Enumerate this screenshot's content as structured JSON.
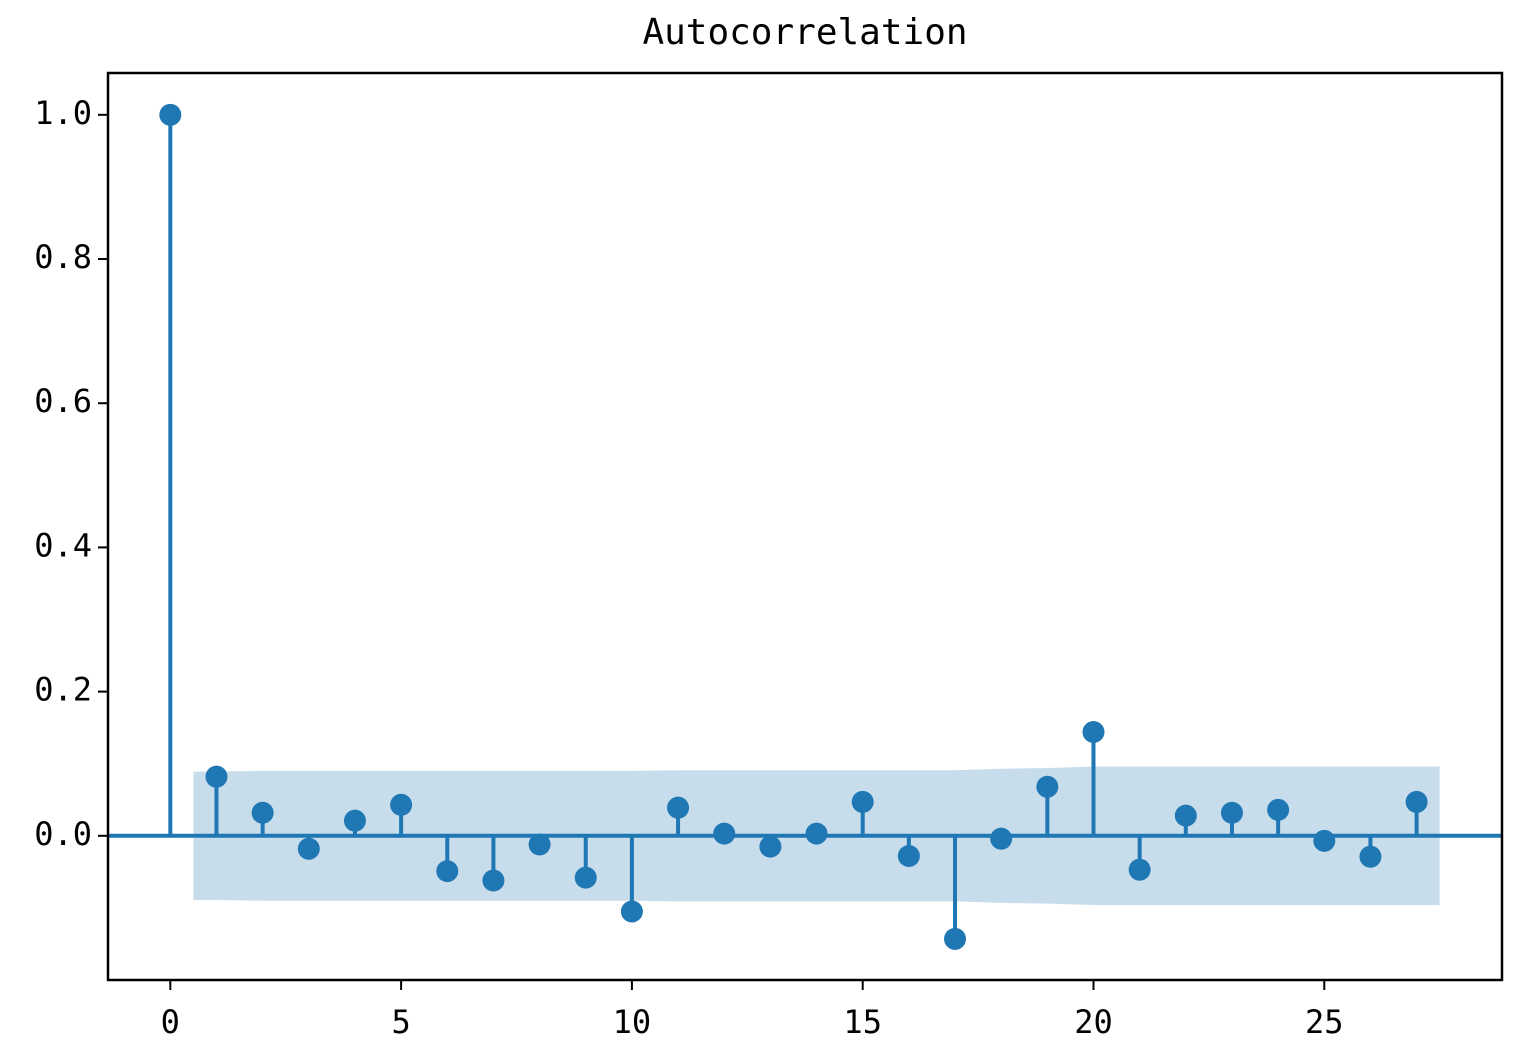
{
  "chart_data": {
    "type": "stem",
    "title": "Autocorrelation",
    "x": [
      0,
      1,
      2,
      3,
      4,
      5,
      6,
      7,
      8,
      9,
      10,
      11,
      12,
      13,
      14,
      15,
      16,
      17,
      18,
      19,
      20,
      21,
      22,
      23,
      24,
      25,
      26,
      27
    ],
    "values": [
      1.0,
      0.082,
      0.032,
      -0.018,
      0.021,
      0.043,
      -0.049,
      -0.062,
      -0.012,
      -0.058,
      -0.105,
      0.039,
      0.003,
      -0.015,
      0.003,
      0.047,
      -0.028,
      -0.143,
      -0.004,
      0.068,
      0.144,
      -0.047,
      0.028,
      0.032,
      0.036,
      -0.007,
      -0.029,
      0.047
    ],
    "confidence_band": [
      0.089,
      0.09,
      0.09,
      0.09,
      0.09,
      0.09,
      0.09,
      0.09,
      0.09,
      0.09,
      0.091,
      0.091,
      0.091,
      0.091,
      0.091,
      0.091,
      0.091,
      0.093,
      0.094,
      0.096,
      0.096,
      0.096,
      0.096,
      0.096,
      0.096,
      0.096,
      0.096
    ],
    "color": "#1f77b4",
    "xlim": [
      -1.35,
      28.85
    ],
    "ylim": [
      -0.2,
      1.058
    ],
    "xticks": [
      0,
      5,
      10,
      15,
      20,
      25
    ],
    "yticks": [
      {
        "value": 0,
        "label": "0.0"
      },
      0.2,
      0.4,
      0.6,
      0.8,
      {
        "value": 1,
        "label": "1.0"
      }
    ],
    "grid": false
  }
}
